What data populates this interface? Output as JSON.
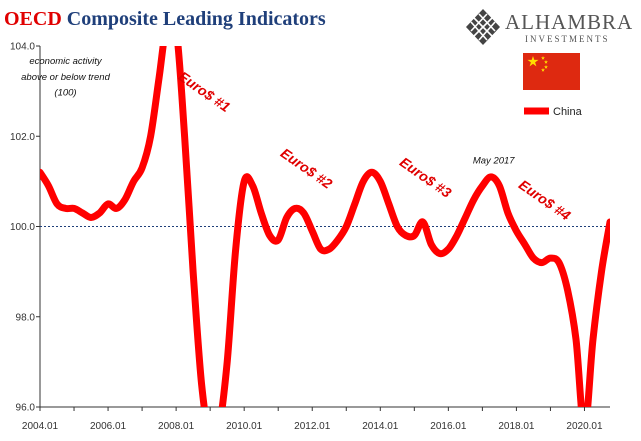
{
  "title_brand": "OECD",
  "title_rest": "Composite Leading Indicators",
  "logo": {
    "name": "ALHAMBRA",
    "sub": "INVESTMENTS",
    "icon": "diamond-lattice-icon"
  },
  "flag": {
    "icon": "china-flag-icon",
    "colors": {
      "field": "#de2910",
      "stars": "#ffde00"
    }
  },
  "colors": {
    "series": "#ff0000",
    "reference_line": "#1f3f7a",
    "title_brand": "#e00000",
    "title_rest": "#1f3f7a",
    "annotation": "#e00000"
  },
  "chart_data": {
    "type": "line",
    "xlim": [
      "2004.01",
      "2020.10"
    ],
    "ylim": [
      96.0,
      104.0
    ],
    "y_ticks": [
      "96.0",
      "98.0",
      "100.0",
      "102.0",
      "104.0"
    ],
    "x_ticks": [
      "2004.01",
      "2006.01",
      "2008.01",
      "2010.01",
      "2012.01",
      "2014.01",
      "2016.01",
      "2018.01",
      "2020.01"
    ],
    "reference_line": 100.0,
    "grid": false,
    "legend": {
      "position": "top-right",
      "entries": [
        "China"
      ]
    },
    "series": [
      {
        "name": "China",
        "points": [
          [
            "2004.01",
            101.2
          ],
          [
            "2004.04",
            100.9
          ],
          [
            "2004.07",
            100.5
          ],
          [
            "2004.10",
            100.4
          ],
          [
            "2005.01",
            100.4
          ],
          [
            "2005.04",
            100.3
          ],
          [
            "2005.07",
            100.2
          ],
          [
            "2005.10",
            100.3
          ],
          [
            "2006.01",
            100.5
          ],
          [
            "2006.04",
            100.4
          ],
          [
            "2006.07",
            100.6
          ],
          [
            "2006.10",
            101.0
          ],
          [
            "2007.01",
            101.3
          ],
          [
            "2007.04",
            102.0
          ],
          [
            "2007.07",
            103.3
          ],
          [
            "2007.10",
            104.6
          ],
          [
            "2008.01",
            104.4
          ],
          [
            "2008.04",
            102.0
          ],
          [
            "2008.07",
            99.0
          ],
          [
            "2008.10",
            96.5
          ],
          [
            "2009.01",
            95.3
          ],
          [
            "2009.04",
            95.5
          ],
          [
            "2009.07",
            97.0
          ],
          [
            "2009.10",
            99.5
          ],
          [
            "2010.01",
            101.0
          ],
          [
            "2010.04",
            100.9
          ],
          [
            "2010.07",
            100.3
          ],
          [
            "2010.10",
            99.8
          ],
          [
            "2011.01",
            99.7
          ],
          [
            "2011.04",
            100.2
          ],
          [
            "2011.07",
            100.4
          ],
          [
            "2011.10",
            100.3
          ],
          [
            "2012.01",
            99.9
          ],
          [
            "2012.04",
            99.5
          ],
          [
            "2012.07",
            99.5
          ],
          [
            "2012.10",
            99.7
          ],
          [
            "2013.01",
            100.0
          ],
          [
            "2013.04",
            100.5
          ],
          [
            "2013.07",
            101.0
          ],
          [
            "2013.10",
            101.2
          ],
          [
            "2014.01",
            101.0
          ],
          [
            "2014.04",
            100.5
          ],
          [
            "2014.07",
            100.0
          ],
          [
            "2014.10",
            99.8
          ],
          [
            "2015.01",
            99.8
          ],
          [
            "2015.04",
            100.1
          ],
          [
            "2015.07",
            99.6
          ],
          [
            "2015.10",
            99.4
          ],
          [
            "2016.01",
            99.5
          ],
          [
            "2016.04",
            99.8
          ],
          [
            "2016.07",
            100.2
          ],
          [
            "2016.10",
            100.6
          ],
          [
            "2017.01",
            100.9
          ],
          [
            "2017.04",
            101.1
          ],
          [
            "2017.07",
            100.9
          ],
          [
            "2017.10",
            100.3
          ],
          [
            "2018.01",
            99.9
          ],
          [
            "2018.04",
            99.6
          ],
          [
            "2018.07",
            99.3
          ],
          [
            "2018.10",
            99.2
          ],
          [
            "2019.01",
            99.3
          ],
          [
            "2019.04",
            99.2
          ],
          [
            "2019.07",
            98.6
          ],
          [
            "2019.10",
            97.5
          ],
          [
            "2020.01",
            95.5
          ],
          [
            "2020.04",
            97.5
          ],
          [
            "2020.07",
            99.0
          ],
          [
            "2020.10",
            100.1
          ]
        ]
      }
    ],
    "annotations": [
      {
        "text": "economic activity",
        "x": "2004.10",
        "y": 103.6,
        "style": "note"
      },
      {
        "text": "above or below trend",
        "x": "2004.10",
        "y": 103.25,
        "style": "note"
      },
      {
        "text": "(100)",
        "x": "2004.10",
        "y": 102.9,
        "style": "note"
      },
      {
        "text": "Euro$ #1",
        "x": "2008.10",
        "y": 102.9,
        "style": "event"
      },
      {
        "text": "Euro$ #2",
        "x": "2011.10",
        "y": 101.2,
        "style": "event"
      },
      {
        "text": "Euro$ #3",
        "x": "2015.04",
        "y": 101.0,
        "style": "event"
      },
      {
        "text": "May 2017",
        "x": "2017.05",
        "y": 101.4,
        "style": "note"
      },
      {
        "text": "Euro$ #4",
        "x": "2018.10",
        "y": 100.5,
        "style": "event"
      }
    ]
  }
}
